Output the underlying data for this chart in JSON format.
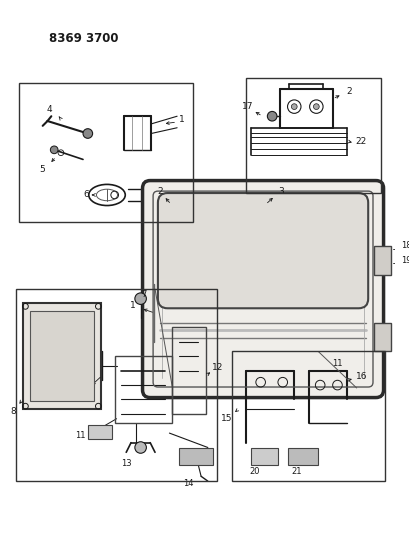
{
  "title": "8369 3700",
  "bg_color": "#ffffff",
  "line_color": "#1a1a1a",
  "box_stroke": "#333333",
  "title_fontsize": 8.5,
  "label_fontsize": 6.5,
  "fig_w": 4.1,
  "fig_h": 5.33,
  "dpi": 100
}
